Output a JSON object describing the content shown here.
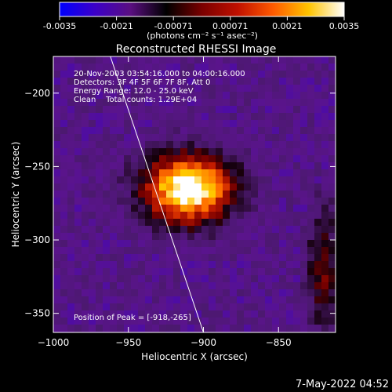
{
  "colorbar": {
    "ticks": [
      "-0.0035",
      "-0.0021",
      "-0.00071",
      "0.00071",
      "0.0021",
      "0.0035"
    ],
    "units_label": "(photons cm⁻² s⁻¹ asec⁻²)",
    "range": [
      -0.0035,
      0.0035
    ],
    "colors": [
      "#0000ff",
      "#3c00c8",
      "#5a0f80",
      "#000000",
      "#7a0000",
      "#c01000",
      "#ff5a00",
      "#ffc400",
      "#ffffff"
    ]
  },
  "title": "Reconstructed RHESSI Image",
  "info": {
    "line1": "20-Nov-2003 03:54:16.000 to 04:00:16.000",
    "line2": "Detectors: 3F 4F 5F 6F 7F 8F, Att 0",
    "line3": "Energy Range: 12.0 - 25.0 keV",
    "line4": "Clean    Total counts: 1.29E+04"
  },
  "peak_label": "Position of Peak = [-918,-265]",
  "footer_date": "7-May-2022 04:52",
  "chart_data": {
    "type": "heatmap",
    "title": "Reconstructed RHESSI Image",
    "xlabel": "Heliocentric X (arcsec)",
    "ylabel": "Heliocentric Y (arcsec)",
    "xlim": [
      -1000,
      -812
    ],
    "ylim": [
      -363,
      -175
    ],
    "x_ticks": [
      -1000,
      -950,
      -900,
      -850
    ],
    "y_ticks": [
      -200,
      -250,
      -300,
      -350
    ],
    "peak": [
      -918,
      -265
    ],
    "limb_line": [
      [
        -962,
        -175
      ],
      [
        -900,
        -363
      ]
    ],
    "secondary_source": [
      -820,
      -320
    ]
  }
}
